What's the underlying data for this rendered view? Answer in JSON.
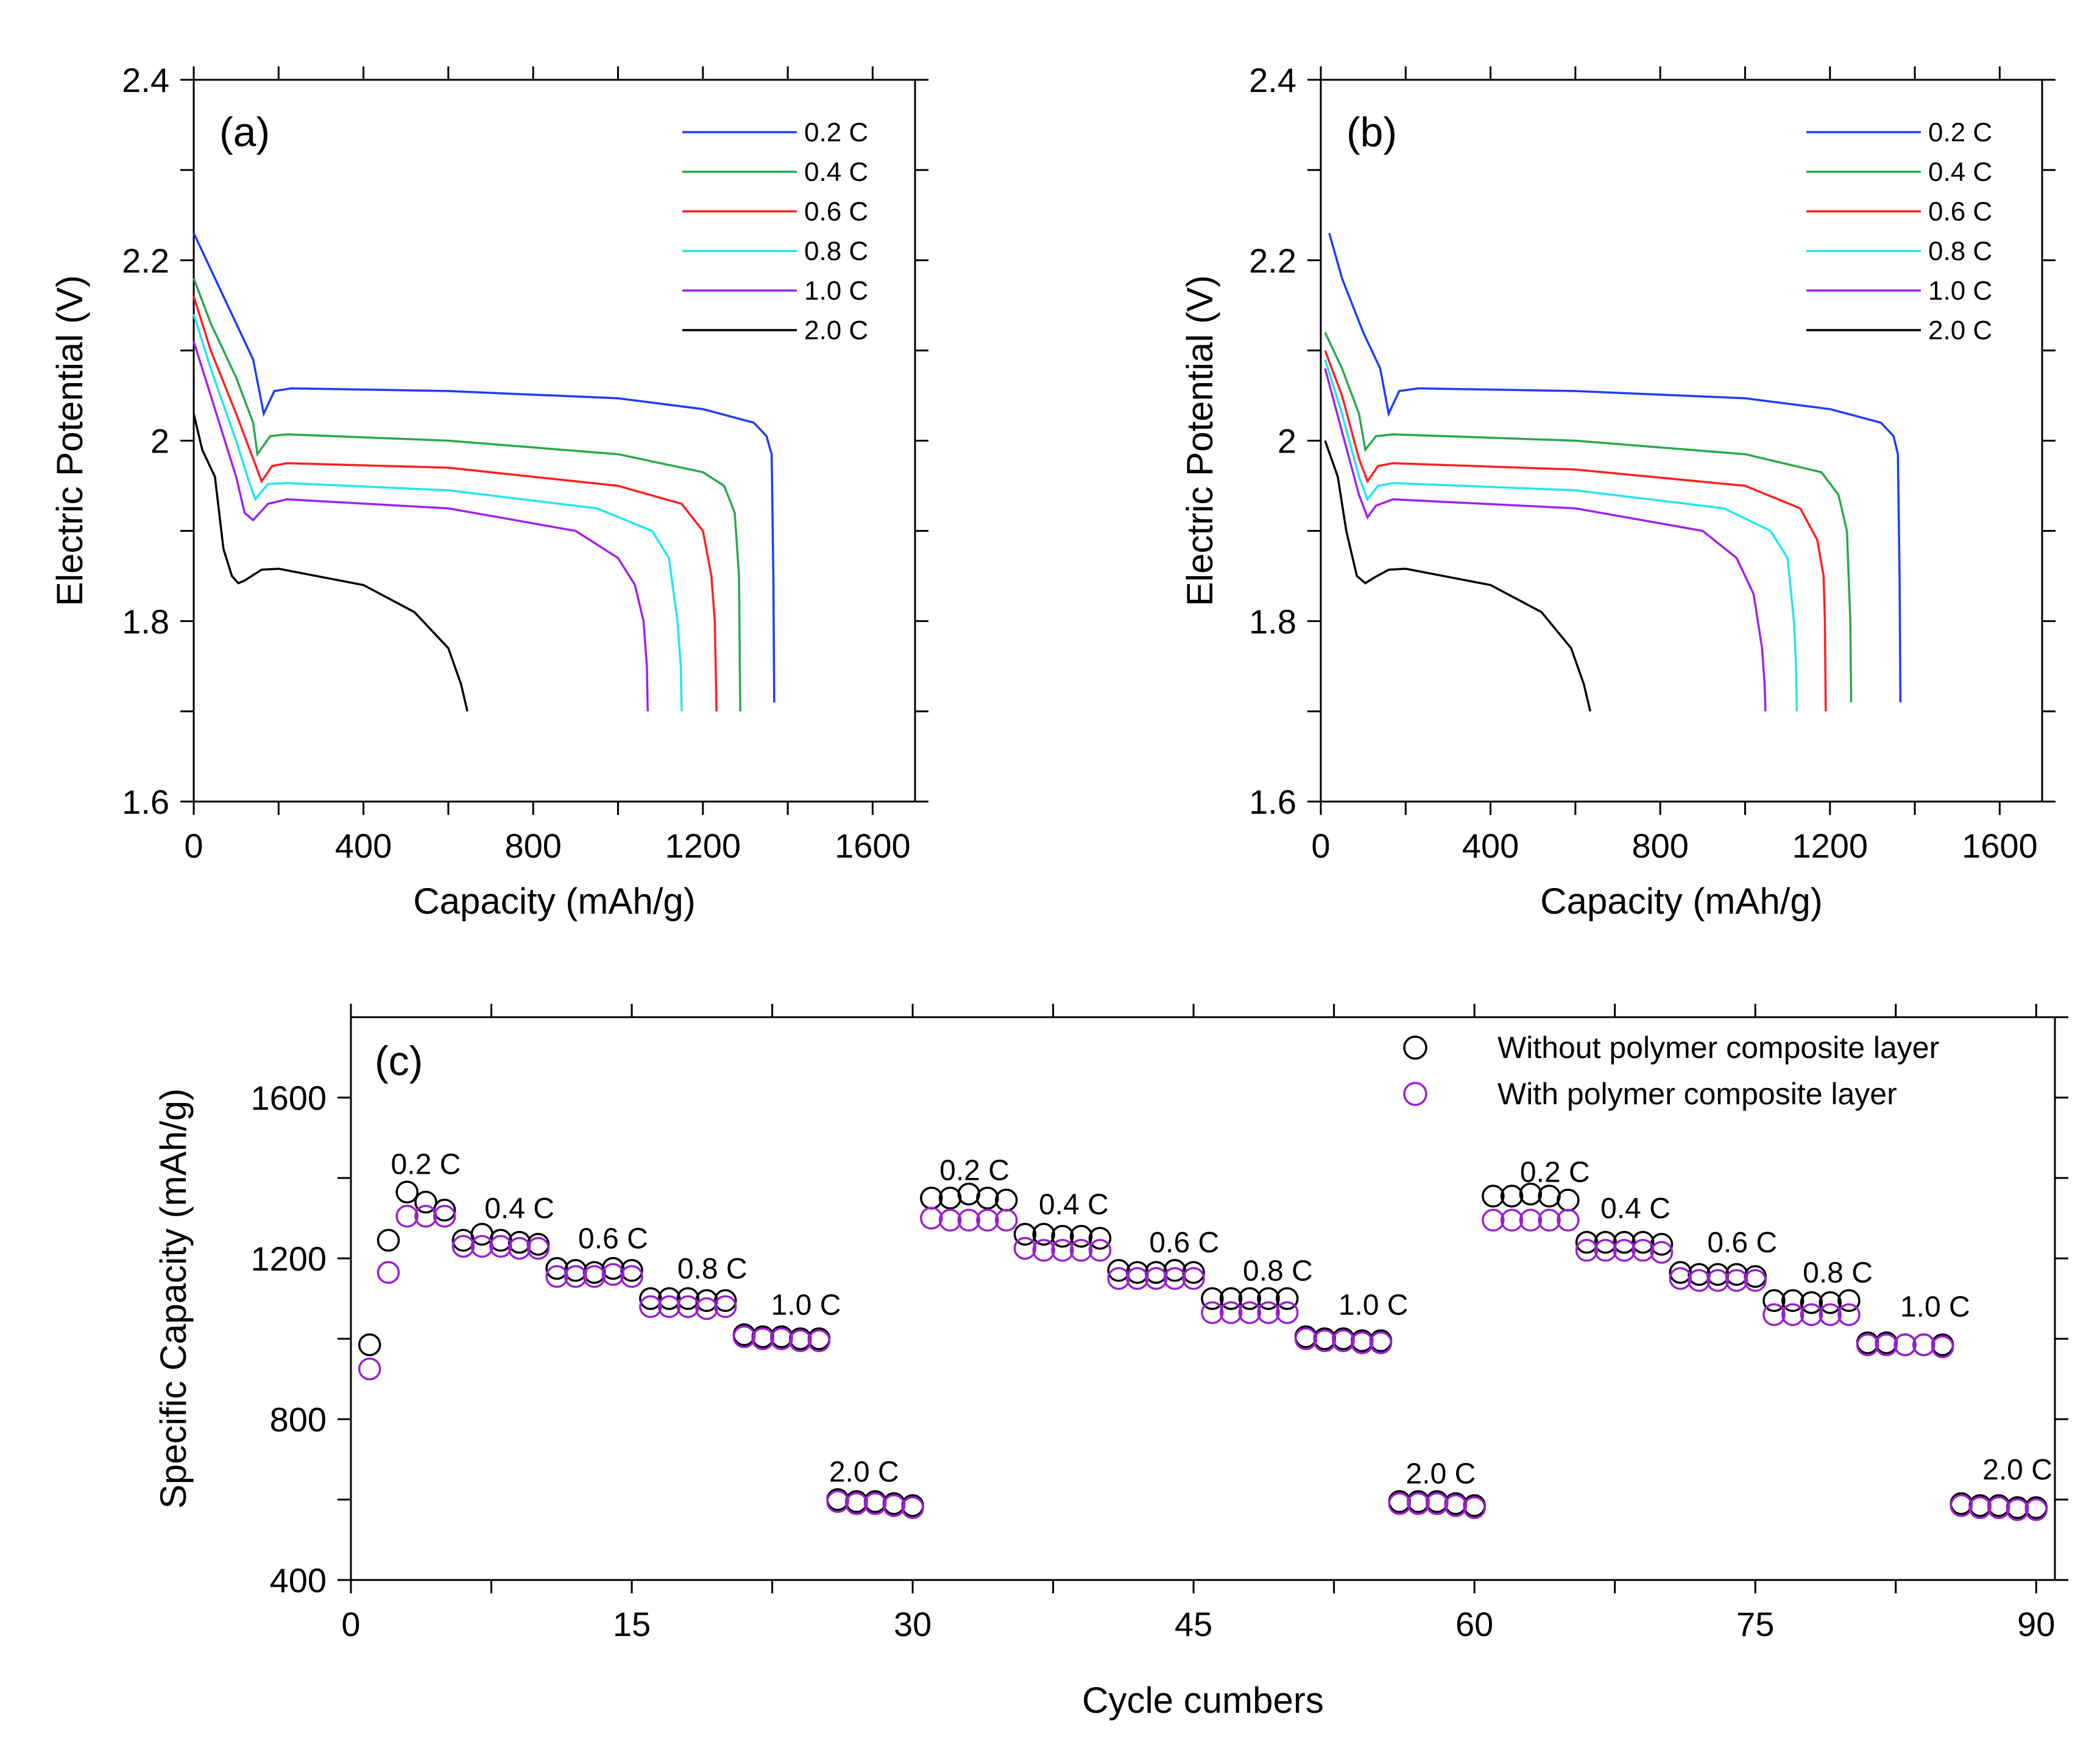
{
  "chart_data": [
    {
      "type": "line",
      "panel_label": "(a)",
      "xlabel": "Capacity (mAh/g)",
      "ylabel": "Electric Potential (V)",
      "xlim": [
        0,
        1700
      ],
      "ylim": [
        1.6,
        2.4
      ],
      "xticks": [
        "0",
        "400",
        "800",
        "1200",
        "1600"
      ],
      "yticks": [
        "1.6",
        "1.8",
        "2",
        "2.2",
        "2.4"
      ],
      "legend_position": "top-right",
      "grid": false,
      "series": [
        {
          "name": "0.2 C",
          "color": "#1f3bff",
          "points": [
            [
              0,
              2.23
            ],
            [
              40,
              2.19
            ],
            [
              100,
              2.13
            ],
            [
              140,
              2.09
            ],
            [
              165,
              2.03
            ],
            [
              190,
              2.055
            ],
            [
              230,
              2.058
            ],
            [
              600,
              2.055
            ],
            [
              1000,
              2.047
            ],
            [
              1200,
              2.035
            ],
            [
              1320,
              2.02
            ],
            [
              1350,
              2.005
            ],
            [
              1362,
              1.985
            ],
            [
              1366,
              1.85
            ],
            [
              1368,
              1.71
            ]
          ]
        },
        {
          "name": "0.4 C",
          "color": "#2aa84a",
          "points": [
            [
              0,
              2.18
            ],
            [
              40,
              2.13
            ],
            [
              100,
              2.07
            ],
            [
              140,
              2.02
            ],
            [
              150,
              1.985
            ],
            [
              180,
              2.005
            ],
            [
              220,
              2.007
            ],
            [
              600,
              2.0
            ],
            [
              1000,
              1.985
            ],
            [
              1200,
              1.965
            ],
            [
              1250,
              1.95
            ],
            [
              1275,
              1.92
            ],
            [
              1285,
              1.85
            ],
            [
              1288,
              1.7
            ]
          ]
        },
        {
          "name": "0.6 C",
          "color": "#ff1f1f",
          "points": [
            [
              0,
              2.16
            ],
            [
              40,
              2.1
            ],
            [
              100,
              2.03
            ],
            [
              140,
              1.98
            ],
            [
              160,
              1.955
            ],
            [
              185,
              1.972
            ],
            [
              220,
              1.975
            ],
            [
              600,
              1.97
            ],
            [
              1000,
              1.95
            ],
            [
              1150,
              1.93
            ],
            [
              1200,
              1.9
            ],
            [
              1220,
              1.85
            ],
            [
              1228,
              1.8
            ],
            [
              1232,
              1.7
            ]
          ]
        },
        {
          "name": "0.8 C",
          "color": "#22e5f0",
          "points": [
            [
              0,
              2.14
            ],
            [
              40,
              2.08
            ],
            [
              100,
              2.0
            ],
            [
              130,
              1.955
            ],
            [
              145,
              1.935
            ],
            [
              175,
              1.952
            ],
            [
              220,
              1.953
            ],
            [
              600,
              1.945
            ],
            [
              950,
              1.925
            ],
            [
              1080,
              1.9
            ],
            [
              1120,
              1.87
            ],
            [
              1140,
              1.8
            ],
            [
              1148,
              1.75
            ],
            [
              1150,
              1.7
            ]
          ]
        },
        {
          "name": "1.0 C",
          "color": "#a020f0",
          "points": [
            [
              0,
              2.11
            ],
            [
              40,
              2.05
            ],
            [
              100,
              1.96
            ],
            [
              120,
              1.92
            ],
            [
              140,
              1.912
            ],
            [
              175,
              1.93
            ],
            [
              220,
              1.935
            ],
            [
              600,
              1.925
            ],
            [
              900,
              1.9
            ],
            [
              1000,
              1.87
            ],
            [
              1040,
              1.84
            ],
            [
              1060,
              1.8
            ],
            [
              1068,
              1.75
            ],
            [
              1070,
              1.7
            ]
          ]
        },
        {
          "name": "2.0 C",
          "color": "#000000",
          "points": [
            [
              0,
              2.03
            ],
            [
              20,
              1.99
            ],
            [
              50,
              1.96
            ],
            [
              70,
              1.88
            ],
            [
              90,
              1.85
            ],
            [
              105,
              1.842
            ],
            [
              120,
              1.845
            ],
            [
              160,
              1.857
            ],
            [
              200,
              1.858
            ],
            [
              400,
              1.84
            ],
            [
              520,
              1.81
            ],
            [
              600,
              1.77
            ],
            [
              630,
              1.73
            ],
            [
              645,
              1.7
            ]
          ]
        }
      ]
    },
    {
      "type": "line",
      "panel_label": "(b)",
      "xlabel": "Capacity (mAh/g)",
      "ylabel": "Electric Potential (V)",
      "xlim": [
        0,
        1700
      ],
      "ylim": [
        1.6,
        2.4
      ],
      "xticks": [
        "0",
        "400",
        "800",
        "1200",
        "1600"
      ],
      "yticks": [
        "1.6",
        "1.8",
        "2",
        "2.2",
        "2.4"
      ],
      "legend_position": "top-right",
      "grid": false,
      "series": [
        {
          "name": "0.2 C",
          "color": "#1f3bff",
          "points": [
            [
              20,
              2.23
            ],
            [
              50,
              2.18
            ],
            [
              100,
              2.12
            ],
            [
              140,
              2.08
            ],
            [
              160,
              2.03
            ],
            [
              185,
              2.055
            ],
            [
              230,
              2.058
            ],
            [
              600,
              2.055
            ],
            [
              1000,
              2.047
            ],
            [
              1200,
              2.035
            ],
            [
              1320,
              2.02
            ],
            [
              1350,
              2.005
            ],
            [
              1360,
              1.985
            ],
            [
              1364,
              1.85
            ],
            [
              1366,
              1.71
            ]
          ]
        },
        {
          "name": "0.4 C",
          "color": "#2aa84a",
          "points": [
            [
              10,
              2.12
            ],
            [
              50,
              2.08
            ],
            [
              90,
              2.03
            ],
            [
              105,
              1.99
            ],
            [
              130,
              2.005
            ],
            [
              170,
              2.007
            ],
            [
              600,
              2.0
            ],
            [
              1000,
              1.985
            ],
            [
              1180,
              1.965
            ],
            [
              1220,
              1.94
            ],
            [
              1240,
              1.9
            ],
            [
              1248,
              1.8
            ],
            [
              1250,
              1.71
            ]
          ]
        },
        {
          "name": "0.6 C",
          "color": "#ff1f1f",
          "points": [
            [
              10,
              2.1
            ],
            [
              50,
              2.05
            ],
            [
              90,
              1.98
            ],
            [
              110,
              1.955
            ],
            [
              135,
              1.972
            ],
            [
              170,
              1.975
            ],
            [
              600,
              1.968
            ],
            [
              1000,
              1.95
            ],
            [
              1130,
              1.925
            ],
            [
              1170,
              1.89
            ],
            [
              1185,
              1.85
            ],
            [
              1188,
              1.8
            ],
            [
              1190,
              1.7
            ]
          ]
        },
        {
          "name": "0.8 C",
          "color": "#22e5f0",
          "points": [
            [
              10,
              2.09
            ],
            [
              50,
              2.03
            ],
            [
              90,
              1.96
            ],
            [
              110,
              1.935
            ],
            [
              135,
              1.95
            ],
            [
              170,
              1.953
            ],
            [
              600,
              1.945
            ],
            [
              950,
              1.925
            ],
            [
              1060,
              1.9
            ],
            [
              1100,
              1.87
            ],
            [
              1115,
              1.8
            ],
            [
              1120,
              1.75
            ],
            [
              1122,
              1.7
            ]
          ]
        },
        {
          "name": "1.0 C",
          "color": "#a020f0",
          "points": [
            [
              10,
              2.08
            ],
            [
              50,
              2.01
            ],
            [
              90,
              1.94
            ],
            [
              110,
              1.915
            ],
            [
              130,
              1.928
            ],
            [
              170,
              1.935
            ],
            [
              600,
              1.925
            ],
            [
              900,
              1.9
            ],
            [
              980,
              1.87
            ],
            [
              1020,
              1.83
            ],
            [
              1040,
              1.77
            ],
            [
              1046,
              1.73
            ],
            [
              1048,
              1.7
            ]
          ]
        },
        {
          "name": "2.0 C",
          "color": "#000000",
          "points": [
            [
              10,
              2.0
            ],
            [
              40,
              1.96
            ],
            [
              60,
              1.9
            ],
            [
              85,
              1.85
            ],
            [
              105,
              1.842
            ],
            [
              125,
              1.848
            ],
            [
              160,
              1.857
            ],
            [
              200,
              1.858
            ],
            [
              400,
              1.84
            ],
            [
              520,
              1.81
            ],
            [
              590,
              1.77
            ],
            [
              620,
              1.73
            ],
            [
              635,
              1.7
            ]
          ]
        }
      ]
    },
    {
      "type": "scatter",
      "panel_label": "(c)",
      "xlabel": "Cycle cumbers",
      "ylabel": "Specific Capacity (mAh/g)",
      "xlim": [
        0,
        91
      ],
      "ylim": [
        400,
        1800
      ],
      "xticks": [
        "0",
        "15",
        "30",
        "45",
        "60",
        "75",
        "90"
      ],
      "yticks": [
        "400",
        "800",
        "1200",
        "1600"
      ],
      "legend_position": "top-right",
      "grid": false,
      "series": [
        {
          "name": "Without polymer composite layer",
          "color": "#000000",
          "x_start": 1,
          "values": [
            985,
            1245,
            1365,
            1340,
            1320,
            1245,
            1260,
            1245,
            1240,
            1235,
            1175,
            1170,
            1165,
            1175,
            1170,
            1100,
            1100,
            1100,
            1095,
            1095,
            1010,
            1005,
            1005,
            1000,
            1000,
            600,
            595,
            595,
            590,
            585,
            1350,
            1350,
            1360,
            1350,
            1345,
            1260,
            1260,
            1255,
            1255,
            1250,
            1170,
            1165,
            1165,
            1170,
            1165,
            1100,
            1100,
            1100,
            1100,
            1100,
            1005,
            1000,
            1000,
            995,
            995,
            595,
            595,
            595,
            590,
            585,
            1355,
            1355,
            1360,
            1355,
            1345,
            1240,
            1240,
            1240,
            1240,
            1235,
            1165,
            1160,
            1160,
            1160,
            1155,
            1095,
            1095,
            1090,
            1090,
            1095,
            990,
            990,
            985,
            985,
            985,
            590,
            585,
            585,
            580,
            580
          ]
        },
        {
          "name": "With polymer composite layer",
          "color": "#9a1fcf",
          "x_start": 1,
          "values": [
            925,
            1165,
            1305,
            1305,
            1305,
            1230,
            1230,
            1230,
            1225,
            1225,
            1155,
            1155,
            1155,
            1160,
            1155,
            1080,
            1080,
            1080,
            1075,
            1080,
            1005,
            1000,
            1000,
            995,
            995,
            595,
            590,
            590,
            585,
            580,
            1300,
            1295,
            1295,
            1295,
            1295,
            1225,
            1220,
            1220,
            1220,
            1220,
            1150,
            1150,
            1150,
            1150,
            1150,
            1065,
            1065,
            1065,
            1065,
            1065,
            1000,
            995,
            995,
            990,
            990,
            590,
            590,
            590,
            585,
            580,
            1295,
            1295,
            1295,
            1295,
            1295,
            1220,
            1220,
            1220,
            1220,
            1215,
            1150,
            1145,
            1145,
            1145,
            1145,
            1060,
            1060,
            1060,
            1060,
            1060,
            985,
            985,
            985,
            985,
            980,
            585,
            580,
            580,
            575,
            575
          ]
        }
      ],
      "rate_annotations": [
        {
          "text": "0.2 C",
          "x": 4,
          "y": 1410
        },
        {
          "text": "0.4 C",
          "x": 9,
          "y": 1300
        },
        {
          "text": "0.6 C",
          "x": 14,
          "y": 1225
        },
        {
          "text": "0.8 C",
          "x": 19.3,
          "y": 1150
        },
        {
          "text": "1.0 C",
          "x": 24.3,
          "y": 1060
        },
        {
          "text": "2.0 C",
          "x": 27.4,
          "y": 645
        },
        {
          "text": "0.2 C",
          "x": 33.3,
          "y": 1395
        },
        {
          "text": "0.4 C",
          "x": 38.6,
          "y": 1310
        },
        {
          "text": "0.6 C",
          "x": 44.5,
          "y": 1215
        },
        {
          "text": "0.8 C",
          "x": 49.5,
          "y": 1145
        },
        {
          "text": "1.0 C",
          "x": 54.6,
          "y": 1060
        },
        {
          "text": "2.0 C",
          "x": 58.2,
          "y": 640
        },
        {
          "text": "0.2 C",
          "x": 64.3,
          "y": 1390
        },
        {
          "text": "0.4 C",
          "x": 68.6,
          "y": 1300
        },
        {
          "text": "0.6 C",
          "x": 74.3,
          "y": 1215
        },
        {
          "text": "0.8 C",
          "x": 79.4,
          "y": 1140
        },
        {
          "text": "1.0 C",
          "x": 84.6,
          "y": 1055
        },
        {
          "text": "2.0 C",
          "x": 89,
          "y": 650
        }
      ]
    }
  ]
}
